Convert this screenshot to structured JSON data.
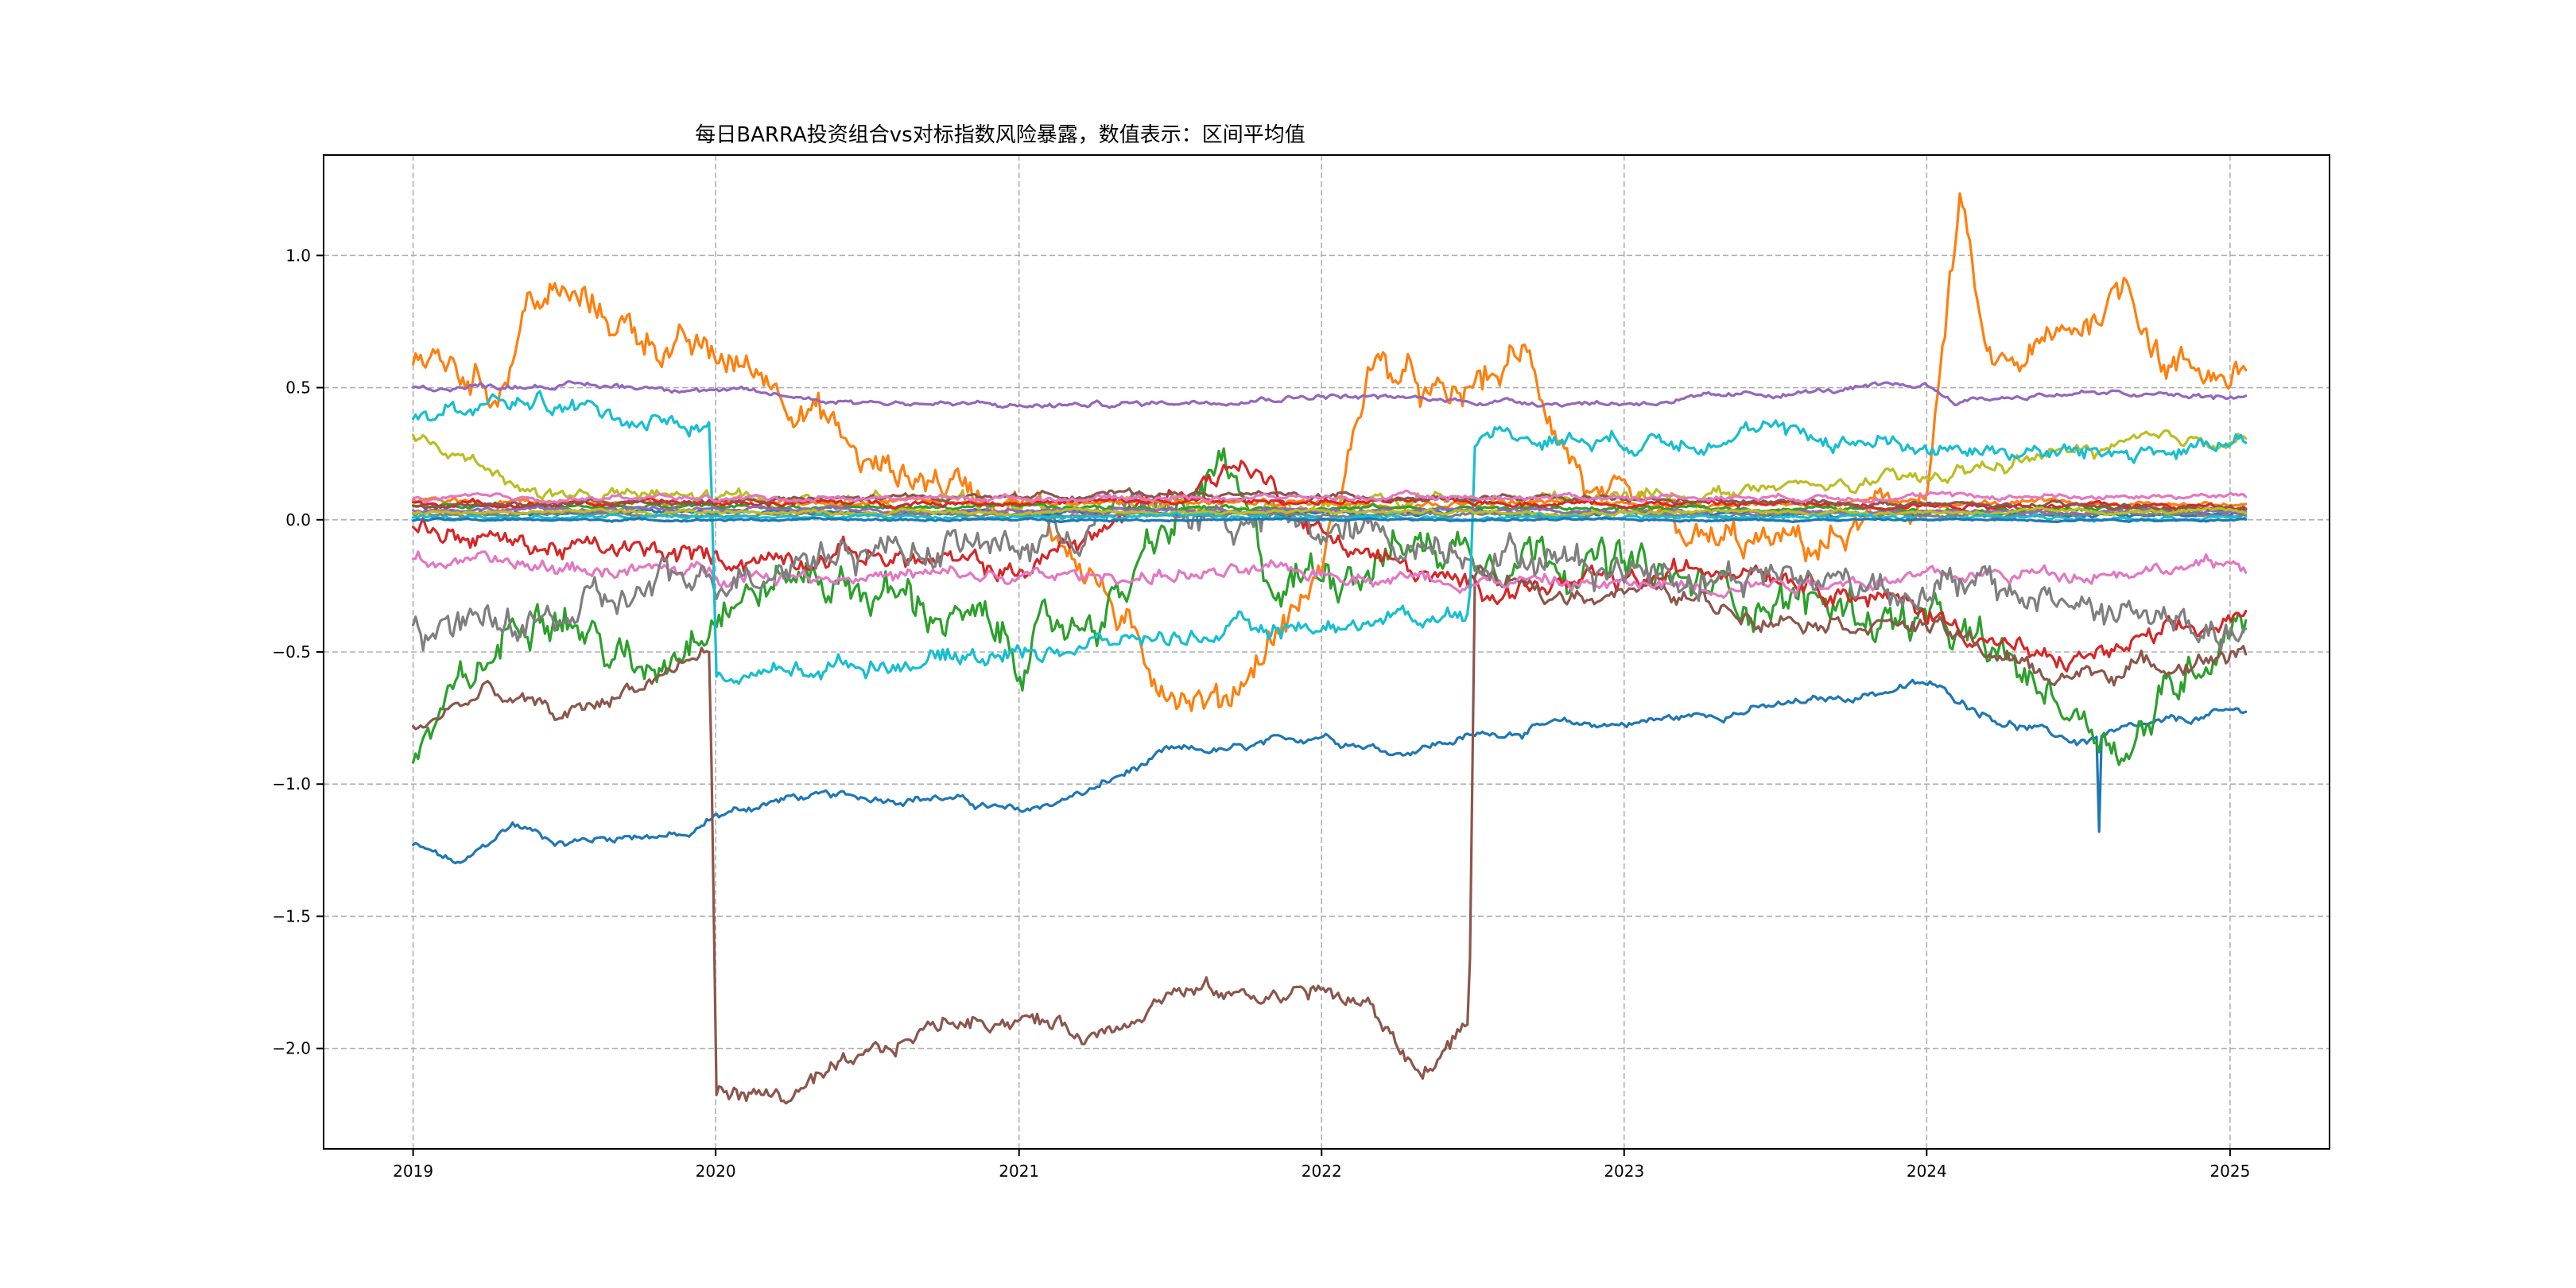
{
  "chart_data": {
    "type": "line",
    "title": "每日BARRA投资组合vs对标指数风险暴露，数值表示：区间平均值",
    "xlabel": "",
    "ylabel": "",
    "x_start": "2019-01-01",
    "x_end": "2025-01-31",
    "xlim": [
      "2018-09-15",
      "2025-05-01"
    ],
    "ylim": [
      -2.38,
      1.38
    ],
    "x_ticks": [
      {
        "label": "2019",
        "date": "2019-01-01"
      },
      {
        "label": "2020",
        "date": "2020-01-01"
      },
      {
        "label": "2021",
        "date": "2021-01-01"
      },
      {
        "label": "2022",
        "date": "2022-01-01"
      },
      {
        "label": "2023",
        "date": "2023-01-01"
      },
      {
        "label": "2024",
        "date": "2024-01-01"
      },
      {
        "label": "2025",
        "date": "2025-01-01"
      }
    ],
    "y_ticks": [
      {
        "label": "1.0",
        "value": 1.0
      },
      {
        "label": "0.5",
        "value": 0.5
      },
      {
        "label": "0.0",
        "value": 0.0
      },
      {
        "label": "−0.5",
        "value": -0.5
      },
      {
        "label": "−1.0",
        "value": -1.0
      },
      {
        "label": "−1.5",
        "value": -1.5
      },
      {
        "label": "−2.0",
        "value": -2.0
      }
    ],
    "grid": true,
    "series": [
      {
        "color": "#1f77b4",
        "noise": 0.012,
        "knots": [
          [
            "2019-01-01",
            -1.23
          ],
          [
            "2019-03-01",
            -1.31
          ],
          [
            "2019-05-01",
            -1.15
          ],
          [
            "2019-07-01",
            -1.22
          ],
          [
            "2019-10-01",
            -1.19
          ],
          [
            "2019-12-01",
            -1.2
          ],
          [
            "2020-01-01",
            -1.12
          ],
          [
            "2020-04-01",
            -1.05
          ],
          [
            "2020-07-01",
            -1.05
          ],
          [
            "2020-10-01",
            -1.05
          ],
          [
            "2021-01-01",
            -1.11
          ],
          [
            "2021-04-01",
            -1.02
          ],
          [
            "2021-07-01",
            -0.88
          ],
          [
            "2021-10-01",
            -0.87
          ],
          [
            "2022-01-01",
            -0.81
          ],
          [
            "2022-04-01",
            -0.88
          ],
          [
            "2022-07-01",
            -0.82
          ],
          [
            "2022-10-01",
            -0.78
          ],
          [
            "2023-01-01",
            -0.77
          ],
          [
            "2023-06-01",
            -0.72
          ],
          [
            "2023-10-01",
            -0.67
          ],
          [
            "2024-01-01",
            -0.62
          ],
          [
            "2024-04-01",
            -0.76
          ],
          [
            "2024-07-01",
            -0.84
          ],
          [
            "2024-10-01",
            -0.78
          ],
          [
            "2025-01-20",
            -0.72
          ]
        ],
        "spikes": [
          [
            "2024-07-27",
            -1.18
          ]
        ]
      },
      {
        "color": "#ff7f0e",
        "noise": 0.05,
        "knots": [
          [
            "2019-01-01",
            0.62
          ],
          [
            "2019-03-01",
            0.55
          ],
          [
            "2019-04-15",
            0.5
          ],
          [
            "2019-05-20",
            0.83
          ],
          [
            "2019-07-01",
            0.84
          ],
          [
            "2019-09-01",
            0.75
          ],
          [
            "2019-12-01",
            0.63
          ],
          [
            "2020-03-01",
            0.55
          ],
          [
            "2020-05-01",
            0.42
          ],
          [
            "2020-07-01",
            0.2
          ],
          [
            "2020-10-01",
            0.15
          ],
          [
            "2021-01-01",
            0.1
          ],
          [
            "2021-04-01",
            -0.2
          ],
          [
            "2021-06-01",
            -0.55
          ],
          [
            "2021-09-01",
            -0.7
          ],
          [
            "2021-11-01",
            -0.45
          ],
          [
            "2022-01-01",
            -0.2
          ],
          [
            "2022-03-01",
            0.6
          ],
          [
            "2022-06-01",
            0.42
          ],
          [
            "2022-09-01",
            0.62
          ],
          [
            "2022-12-01",
            0.05
          ],
          [
            "2023-04-01",
            -0.1
          ],
          [
            "2023-09-01",
            -0.1
          ],
          [
            "2024-01-01",
            0.1
          ],
          [
            "2024-02-10",
            1.2
          ],
          [
            "2024-03-15",
            0.55
          ],
          [
            "2024-06-01",
            0.65
          ],
          [
            "2024-09-01",
            0.9
          ],
          [
            "2024-10-15",
            0.6
          ],
          [
            "2025-01-20",
            0.55
          ]
        ]
      },
      {
        "color": "#2ca02c",
        "noise": 0.06,
        "knots": [
          [
            "2019-01-01",
            -0.88
          ],
          [
            "2019-04-01",
            -0.55
          ],
          [
            "2019-06-01",
            -0.25
          ],
          [
            "2019-10-01",
            -0.6
          ],
          [
            "2020-01-01",
            -0.3
          ],
          [
            "2020-05-01",
            -0.2
          ],
          [
            "2020-10-01",
            -0.35
          ],
          [
            "2021-01-01",
            -0.5
          ],
          [
            "2021-05-01",
            -0.3
          ],
          [
            "2021-09-01",
            0.2
          ],
          [
            "2021-11-01",
            -0.25
          ],
          [
            "2022-04-01",
            -0.1
          ],
          [
            "2022-10-01",
            -0.1
          ],
          [
            "2023-03-01",
            -0.25
          ],
          [
            "2023-08-01",
            -0.3
          ],
          [
            "2024-01-01",
            -0.4
          ],
          [
            "2024-05-01",
            -0.6
          ],
          [
            "2024-09-01",
            -0.85
          ],
          [
            "2025-01-20",
            -0.3
          ]
        ]
      },
      {
        "color": "#d62728",
        "noise": 0.03,
        "knots": [
          [
            "2019-01-01",
            -0.03
          ],
          [
            "2019-06-01",
            -0.1
          ],
          [
            "2020-01-01",
            -0.15
          ],
          [
            "2020-06-01",
            -0.12
          ],
          [
            "2021-01-01",
            -0.2
          ],
          [
            "2021-06-01",
            0.05
          ],
          [
            "2021-10-01",
            0.22
          ],
          [
            "2022-01-01",
            -0.05
          ],
          [
            "2022-06-01",
            -0.25
          ],
          [
            "2023-01-01",
            -0.25
          ],
          [
            "2023-06-01",
            -0.15
          ],
          [
            "2024-01-01",
            -0.35
          ],
          [
            "2024-06-01",
            -0.55
          ],
          [
            "2025-01-20",
            -0.38
          ]
        ]
      },
      {
        "color": "#9467bd",
        "noise": 0.008,
        "knots": [
          [
            "2019-01-01",
            0.5
          ],
          [
            "2019-06-01",
            0.51
          ],
          [
            "2019-12-01",
            0.5
          ],
          [
            "2020-06-01",
            0.45
          ],
          [
            "2021-01-01",
            0.43
          ],
          [
            "2021-06-01",
            0.44
          ],
          [
            "2022-01-01",
            0.47
          ],
          [
            "2022-07-01",
            0.45
          ],
          [
            "2023-01-01",
            0.44
          ],
          [
            "2023-06-01",
            0.47
          ],
          [
            "2024-01-01",
            0.51
          ],
          [
            "2024-02-01",
            0.45
          ],
          [
            "2024-07-01",
            0.48
          ],
          [
            "2025-01-20",
            0.46
          ]
        ]
      },
      {
        "color": "#8c564b",
        "noise": 0.025,
        "knots": [
          [
            "2019-01-01",
            -0.78
          ],
          [
            "2019-04-01",
            -0.65
          ],
          [
            "2019-07-01",
            -0.75
          ],
          [
            "2019-12-25",
            -0.5
          ],
          [
            "2020-01-02",
            -2.16
          ],
          [
            "2020-04-01",
            -2.18
          ],
          [
            "2020-07-01",
            -2.05
          ],
          [
            "2020-10-01",
            -1.9
          ],
          [
            "2021-01-01",
            -1.88
          ],
          [
            "2021-04-01",
            -1.95
          ],
          [
            "2021-07-01",
            -1.78
          ],
          [
            "2021-10-01",
            -1.8
          ],
          [
            "2022-01-01",
            -1.78
          ],
          [
            "2022-03-01",
            -1.85
          ],
          [
            "2022-05-01",
            -2.1
          ],
          [
            "2022-06-28",
            -1.9
          ],
          [
            "2022-07-05",
            -0.2
          ],
          [
            "2022-10-01",
            -0.3
          ],
          [
            "2023-01-01",
            -0.25
          ],
          [
            "2023-06-01",
            -0.35
          ],
          [
            "2024-01-01",
            -0.4
          ],
          [
            "2024-06-01",
            -0.6
          ],
          [
            "2025-01-20",
            -0.5
          ]
        ]
      },
      {
        "color": "#e377c2",
        "noise": 0.02,
        "knots": [
          [
            "2019-01-01",
            -0.15
          ],
          [
            "2019-06-01",
            -0.18
          ],
          [
            "2020-01-01",
            -0.2
          ],
          [
            "2021-01-01",
            -0.22
          ],
          [
            "2022-01-01",
            -0.2
          ],
          [
            "2023-01-01",
            -0.25
          ],
          [
            "2024-01-01",
            -0.22
          ],
          [
            "2025-01-20",
            -0.17
          ]
        ]
      },
      {
        "color": "#7f7f7f",
        "noise": 0.05,
        "knots": [
          [
            "2019-01-01",
            -0.42
          ],
          [
            "2019-06-01",
            -0.4
          ],
          [
            "2020-01-01",
            -0.2
          ],
          [
            "2020-06-01",
            -0.1
          ],
          [
            "2021-01-01",
            -0.1
          ],
          [
            "2021-06-01",
            0.05
          ],
          [
            "2022-01-01",
            -0.05
          ],
          [
            "2022-07-01",
            -0.1
          ],
          [
            "2023-01-01",
            -0.18
          ],
          [
            "2023-06-01",
            -0.2
          ],
          [
            "2024-01-01",
            -0.25
          ],
          [
            "2024-06-01",
            -0.3
          ],
          [
            "2025-01-20",
            -0.45
          ]
        ]
      },
      {
        "color": "#bcbd22",
        "noise": 0.02,
        "knots": [
          [
            "2019-01-01",
            0.3
          ],
          [
            "2019-04-01",
            0.2
          ],
          [
            "2019-06-01",
            0.1
          ],
          [
            "2020-01-01",
            0.08
          ],
          [
            "2021-01-01",
            0.06
          ],
          [
            "2022-01-01",
            0.05
          ],
          [
            "2023-01-01",
            0.08
          ],
          [
            "2024-01-01",
            0.15
          ],
          [
            "2024-06-01",
            0.25
          ],
          [
            "2025-01-20",
            0.32
          ]
        ]
      },
      {
        "color": "#17becf",
        "noise": 0.025,
        "knots": [
          [
            "2019-01-01",
            0.38
          ],
          [
            "2019-06-01",
            0.45
          ],
          [
            "2019-09-01",
            0.4
          ],
          [
            "2019-12-25",
            0.35
          ],
          [
            "2020-01-02",
            -0.6
          ],
          [
            "2020-06-01",
            -0.55
          ],
          [
            "2021-01-01",
            -0.5
          ],
          [
            "2021-06-01",
            -0.45
          ],
          [
            "2022-01-01",
            -0.4
          ],
          [
            "2022-06-28",
            -0.35
          ],
          [
            "2022-07-05",
            0.33
          ],
          [
            "2023-01-01",
            0.3
          ],
          [
            "2023-06-01",
            0.33
          ],
          [
            "2024-01-01",
            0.28
          ],
          [
            "2024-06-01",
            0.25
          ],
          [
            "2025-01-20",
            0.27
          ]
        ]
      },
      {
        "color": "#1f77b4",
        "noise": 0.006,
        "knots": [
          [
            "2019-01-01",
            0.03
          ],
          [
            "2025-01-20",
            0.02
          ]
        ]
      },
      {
        "color": "#ff7f0e",
        "noise": 0.008,
        "knots": [
          [
            "2019-01-01",
            0.07
          ],
          [
            "2025-01-20",
            0.06
          ]
        ]
      },
      {
        "color": "#2ca02c",
        "noise": 0.006,
        "knots": [
          [
            "2019-01-01",
            0.05
          ],
          [
            "2025-01-20",
            0.04
          ]
        ]
      },
      {
        "color": "#d62728",
        "noise": 0.008,
        "knots": [
          [
            "2019-01-01",
            0.06
          ],
          [
            "2022-01-01",
            0.07
          ],
          [
            "2025-01-20",
            0.05
          ]
        ]
      },
      {
        "color": "#9467bd",
        "noise": 0.006,
        "knots": [
          [
            "2019-01-01",
            0.04
          ],
          [
            "2025-01-20",
            0.03
          ]
        ]
      },
      {
        "color": "#8c564b",
        "noise": 0.008,
        "knots": [
          [
            "2019-01-01",
            0.05
          ],
          [
            "2021-06-01",
            0.1
          ],
          [
            "2025-01-20",
            0.04
          ]
        ]
      },
      {
        "color": "#e377c2",
        "noise": 0.008,
        "knots": [
          [
            "2019-01-01",
            0.08
          ],
          [
            "2025-01-20",
            0.09
          ]
        ]
      },
      {
        "color": "#7f7f7f",
        "noise": 0.006,
        "knots": [
          [
            "2019-01-01",
            0.02
          ],
          [
            "2025-01-20",
            0.02
          ]
        ]
      },
      {
        "color": "#bcbd22",
        "noise": 0.006,
        "knots": [
          [
            "2019-01-01",
            0.03
          ],
          [
            "2025-01-20",
            0.03
          ]
        ]
      },
      {
        "color": "#17becf",
        "noise": 0.006,
        "knots": [
          [
            "2019-01-01",
            0.01
          ],
          [
            "2025-01-20",
            0.01
          ]
        ]
      },
      {
        "color": "#1f77b4",
        "noise": 0.003,
        "knots": [
          [
            "2019-01-01",
            0.0
          ],
          [
            "2025-01-20",
            0.0
          ]
        ]
      }
    ]
  }
}
